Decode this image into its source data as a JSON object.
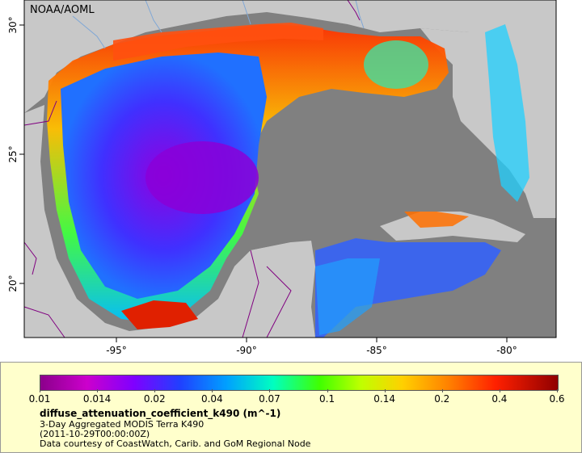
{
  "map": {
    "credit": "NOAA/AOML",
    "lon_ticks": [
      "-95°",
      "-90°",
      "-85°",
      "-80°"
    ],
    "lat_ticks": [
      "30°",
      "25°",
      "20°"
    ],
    "colors": {
      "ocean_nodata": "#808080",
      "land": "#c8c8c8",
      "borders": "#800080",
      "rivers": "#7fa7d6"
    }
  },
  "legend": {
    "ticks": [
      "0.01",
      "0.014",
      "0.02",
      "0.04",
      "0.07",
      "0.1",
      "0.14",
      "0.2",
      "0.4",
      "0.6"
    ],
    "variable": "diffuse_attenuation_coefficient_k490 (m^-1)",
    "subtitle": "3-Day Aggregated MODIS Terra K490",
    "date": "(2011-10-29T00:00:00Z)",
    "courtesy": "Data courtesy of CoastWatch, Carib. and GoM Regional Node"
  }
}
